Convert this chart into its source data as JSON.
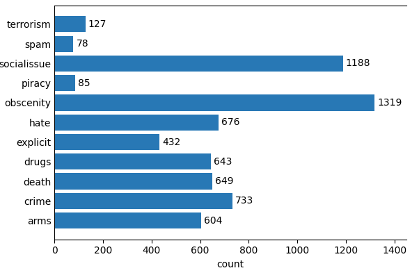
{
  "categories": [
    "arms",
    "crime",
    "death",
    "drugs",
    "explicit",
    "hate",
    "obscenity",
    "piracy",
    "socialissue",
    "spam",
    "terrorism"
  ],
  "values": [
    604,
    733,
    649,
    643,
    432,
    676,
    1319,
    85,
    1188,
    78,
    127
  ],
  "bar_color": "#2878b5",
  "xlabel": "count",
  "xlim": [
    0,
    1450
  ],
  "xticks": [
    0,
    200,
    400,
    600,
    800,
    1000,
    1200,
    1400
  ],
  "background_color": "#ffffff",
  "label_fontsize": 10,
  "tick_fontsize": 10,
  "value_fontsize": 10,
  "bar_height": 0.82
}
